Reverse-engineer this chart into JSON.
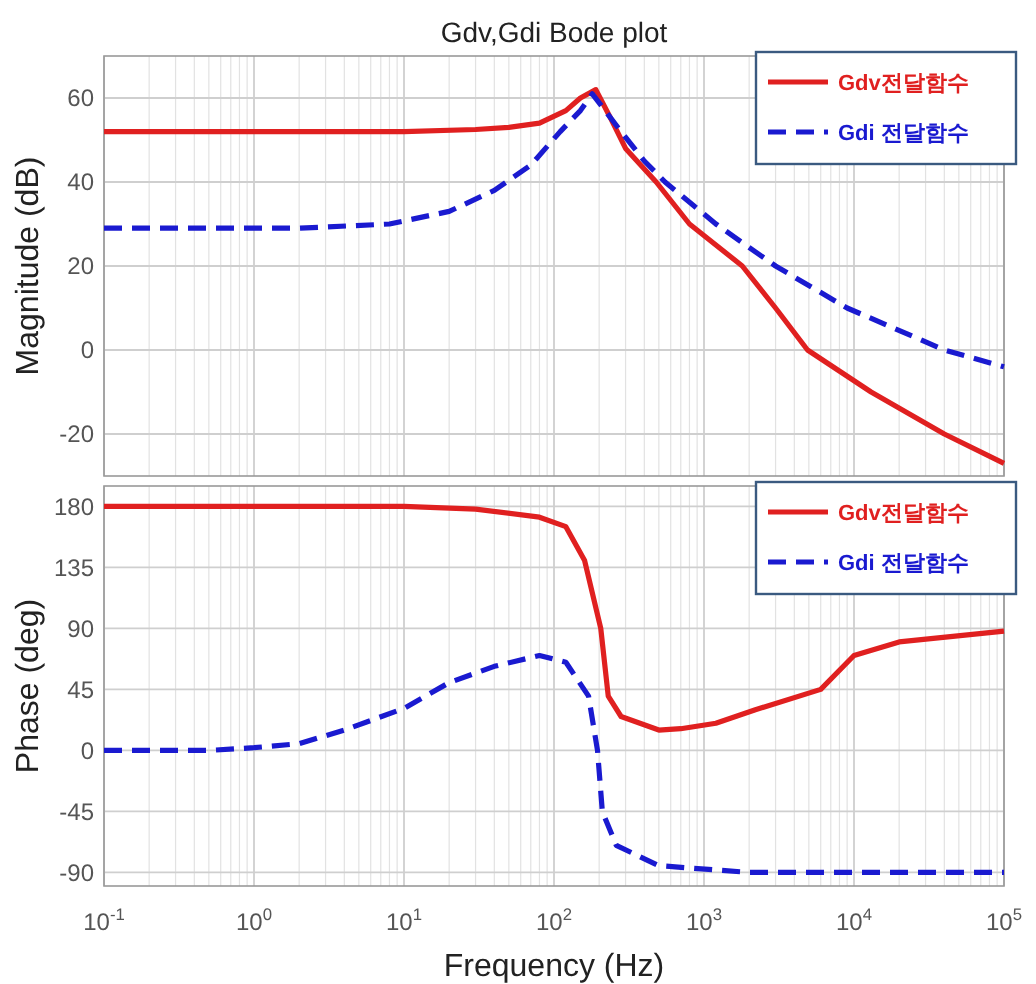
{
  "chart_data": [
    {
      "type": "line",
      "title": "Gdv,Gdi Bode plot",
      "ylabel": "Magnitude (dB)",
      "log": "x",
      "grid": true,
      "legend": "top right",
      "tick_labels": "y",
      "xlim": [
        0.1,
        100000
      ],
      "xticks": [
        {
          "value": 0.1,
          "label": null
        },
        {
          "value": 1,
          "label": null
        },
        {
          "value": 10,
          "label": null
        },
        {
          "value": 100,
          "label": null
        },
        {
          "value": 1000,
          "label": null
        },
        {
          "value": 10000,
          "label": null
        },
        {
          "value": 100000,
          "label": null
        }
      ],
      "ylim": [
        -30,
        70
      ],
      "yticks": [
        -20,
        0,
        20,
        40,
        60
      ],
      "series": [
        {
          "name": "Gdv전달함수",
          "color": "#e02020",
          "line_style": "solid",
          "x": [
            0.1,
            1,
            10,
            30,
            50,
            80,
            120,
            150,
            190,
            240,
            300,
            480,
            800,
            1800,
            3000,
            4900,
            13000,
            40000,
            100000
          ],
          "values": [
            52,
            52,
            52,
            52.5,
            53,
            54,
            57,
            60,
            62,
            55,
            48,
            40,
            30,
            20,
            10,
            0,
            -10,
            -20,
            -27
          ]
        },
        {
          "name": "Gdi 전달함수",
          "color": "#1a1ad0",
          "line_style": "dashed",
          "x": [
            0.1,
            1,
            2,
            8,
            20,
            40,
            70,
            110,
            150,
            180,
            280,
            400,
            550,
            1200,
            3000,
            9000,
            40000,
            100000
          ],
          "values": [
            29,
            29,
            29,
            30,
            33,
            38,
            44,
            52,
            57,
            61,
            52,
            45,
            40,
            30,
            20,
            10,
            0,
            -4
          ]
        }
      ]
    },
    {
      "type": "line",
      "xlabel": "Frequency (Hz)",
      "ylabel": "Phase (deg)",
      "log": "x",
      "grid": true,
      "legend": "top right",
      "xlim": [
        0.1,
        100000
      ],
      "xticks": [
        {
          "value": 0.1,
          "label": "10$^{-1}$"
        },
        {
          "value": 1,
          "label": "10$^{0}$"
        },
        {
          "value": 10,
          "label": "10$^{1}$"
        },
        {
          "value": 100,
          "label": "10$^{2}$"
        },
        {
          "value": 1000,
          "label": "10$^{3}$"
        },
        {
          "value": 10000,
          "label": "10$^{4}$"
        },
        {
          "value": 100000,
          "label": "10$^{5}$"
        }
      ],
      "ylim": [
        -100,
        195
      ],
      "yticks": [
        -90,
        -45,
        0,
        45,
        90,
        135,
        180
      ],
      "series": [
        {
          "name": "Gdv전달함수",
          "color": "#e02020",
          "line_style": "solid",
          "x": [
            0.1,
            1,
            10,
            30,
            80,
            120,
            160,
            205,
            230,
            280,
            500,
            700,
            1200,
            2200,
            6000,
            10000,
            20000,
            100000
          ],
          "values": [
            180,
            180,
            180,
            178,
            172,
            165,
            140,
            90,
            40,
            25,
            15,
            16,
            20,
            30,
            45,
            70,
            80,
            88
          ]
        },
        {
          "name": "Gdi 전달함수",
          "color": "#1a1ad0",
          "line_style": "dashed",
          "x": [
            0.1,
            0.5,
            1,
            2,
            4,
            10,
            20,
            40,
            80,
            120,
            170,
            195,
            210,
            260,
            500,
            2000,
            100000
          ],
          "values": [
            0,
            0,
            2,
            5,
            15,
            31,
            50,
            62,
            70,
            65,
            40,
            0,
            -45,
            -70,
            -85,
            -90,
            -90
          ]
        }
      ]
    }
  ]
}
